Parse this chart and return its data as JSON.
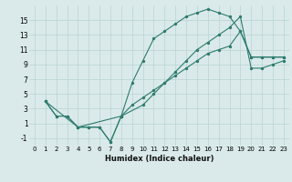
{
  "title": "",
  "xlabel": "Humidex (Indice chaleur)",
  "ylabel": "",
  "bg_color": "#daeaea",
  "grid_color": "#b8d4d4",
  "line_color": "#2e7b6e",
  "xlim": [
    -0.5,
    23.5
  ],
  "ylim": [
    -2,
    17
  ],
  "xticks": [
    0,
    1,
    2,
    3,
    4,
    5,
    6,
    7,
    8,
    9,
    10,
    11,
    12,
    13,
    14,
    15,
    16,
    17,
    18,
    19,
    20,
    21,
    22,
    23
  ],
  "yticks": [
    -1,
    1,
    3,
    5,
    7,
    9,
    11,
    13,
    15
  ],
  "series": [
    {
      "x": [
        1,
        2,
        3,
        4,
        5,
        6,
        7,
        8,
        9,
        10,
        11,
        12,
        13,
        14,
        15,
        16,
        17,
        18,
        19,
        20,
        21,
        22,
        23
      ],
      "y": [
        4,
        2,
        2,
        0.5,
        0.5,
        0.5,
        -1.5,
        2.0,
        6.5,
        9.5,
        12.5,
        13.5,
        14.5,
        15.5,
        16.0,
        16.5,
        16.0,
        15.5,
        13.5,
        10.0,
        10.0,
        10.0,
        10.0
      ]
    },
    {
      "x": [
        1,
        2,
        3,
        4,
        5,
        6,
        7,
        8,
        9,
        10,
        11,
        12,
        13,
        14,
        15,
        16,
        17,
        18,
        19,
        20,
        21,
        22,
        23
      ],
      "y": [
        4,
        2,
        2,
        0.5,
        0.5,
        0.5,
        -1.5,
        2.0,
        3.5,
        4.5,
        5.5,
        6.5,
        7.5,
        8.5,
        9.5,
        10.5,
        11.0,
        11.5,
        13.5,
        10.0,
        10.0,
        10.0,
        10.0
      ]
    },
    {
      "x": [
        1,
        4,
        8,
        10,
        11,
        12,
        13,
        14,
        15,
        16,
        17,
        18,
        19,
        20,
        21,
        22,
        23
      ],
      "y": [
        4,
        0.5,
        2.0,
        3.5,
        5.0,
        6.5,
        8.0,
        9.5,
        11.0,
        12.0,
        13.0,
        14.0,
        15.5,
        8.5,
        8.5,
        9.0,
        9.5
      ]
    }
  ]
}
